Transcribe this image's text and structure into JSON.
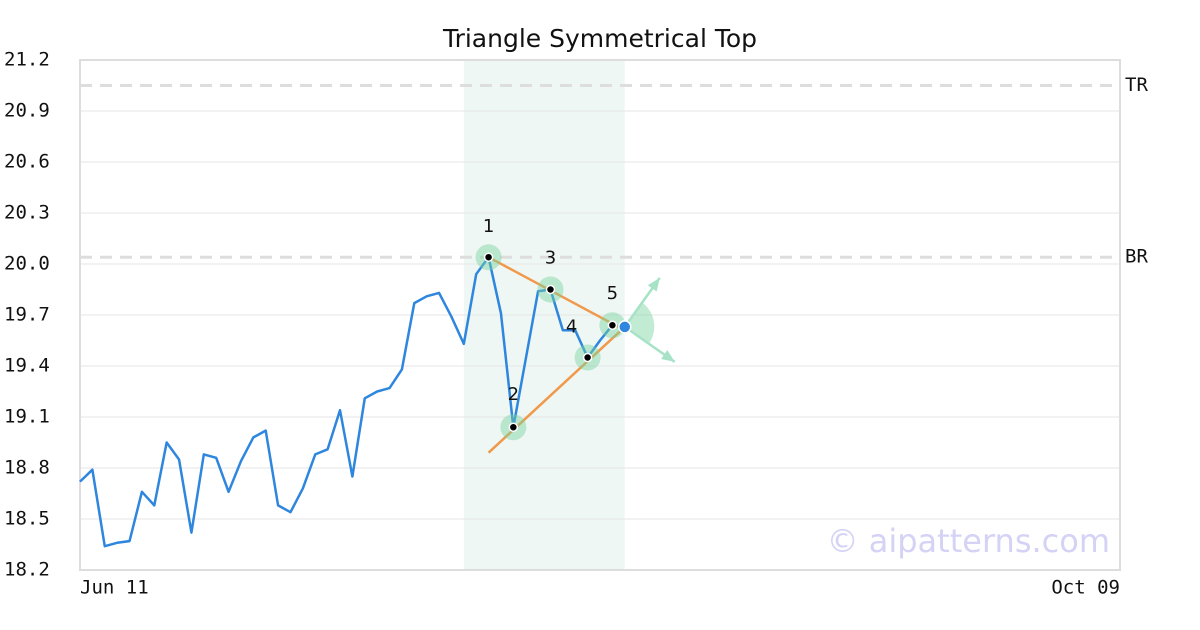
{
  "chart_data": {
    "type": "line",
    "title": "Triangle Symmetrical Top",
    "x": [
      0,
      1,
      2,
      3,
      4,
      5,
      6,
      7,
      8,
      9,
      10,
      11,
      12,
      13,
      14,
      15,
      16,
      17,
      18,
      19,
      20,
      21,
      22,
      23,
      24,
      25,
      26,
      27,
      28,
      29,
      30,
      31,
      32,
      33,
      34,
      35,
      36,
      37,
      38,
      39,
      40,
      41,
      42,
      43,
      44
    ],
    "values": [
      18.72,
      18.79,
      18.34,
      18.36,
      18.37,
      18.66,
      18.58,
      18.95,
      18.85,
      18.42,
      18.88,
      18.86,
      18.66,
      18.84,
      18.98,
      19.02,
      18.58,
      18.54,
      18.68,
      18.88,
      18.91,
      19.14,
      18.75,
      19.21,
      19.25,
      19.27,
      19.38,
      19.77,
      19.81,
      19.83,
      19.69,
      19.53,
      19.94,
      20.04,
      19.71,
      19.04,
      19.44,
      19.84,
      19.85,
      19.61,
      19.61,
      19.45,
      19.55,
      19.64,
      19.63
    ],
    "color": "#2e86de",
    "xlim": [
      0,
      84
    ],
    "xticks": [
      {
        "value": 0,
        "label": "Jun 11"
      },
      {
        "value": 84,
        "label": "Oct 09"
      }
    ],
    "ylim": [
      18.2,
      21.2
    ],
    "yticks": [
      18.2,
      18.5,
      18.8,
      19.1,
      19.4,
      19.7,
      {
        "value": 20,
        "label": "20.0"
      },
      20.3,
      20.6,
      20.9,
      21.2
    ],
    "grid": true,
    "highlight_x": [
      31,
      44
    ],
    "levels": [
      {
        "label": "TR",
        "value": 21.05
      },
      {
        "label": "BR",
        "value": 20.04
      }
    ],
    "trend_lines": [
      {
        "x": [
          33,
          44
        ],
        "values": [
          20.04,
          19.61
        ],
        "color": "#f0994a"
      },
      {
        "x": [
          33,
          44
        ],
        "values": [
          18.89,
          19.63
        ],
        "color": "#f0994a"
      }
    ],
    "pattern_points": [
      {
        "label": "1",
        "x": 33,
        "value": 20.04
      },
      {
        "label": "2",
        "x": 35,
        "value": 19.04
      },
      {
        "label": "3",
        "x": 38,
        "value": 19.85
      },
      {
        "label": "4",
        "x": 41,
        "value": 19.45
      },
      {
        "label": "5",
        "x": 43,
        "value": 19.64
      }
    ],
    "watermark": "© aipatterns.com"
  }
}
